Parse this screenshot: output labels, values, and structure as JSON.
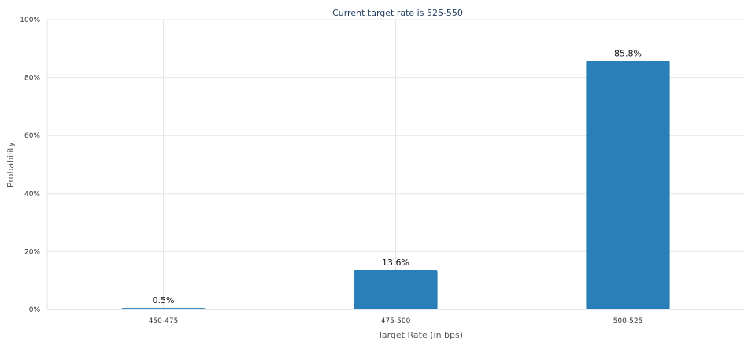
{
  "chart_data": {
    "type": "bar",
    "title": "Current target rate is 525-550",
    "xlabel": "Target Rate (in bps)",
    "ylabel": "Probability",
    "categories": [
      "450-475",
      "475-500",
      "500-525"
    ],
    "values": [
      0.5,
      13.6,
      85.8
    ],
    "value_labels": [
      "0.5%",
      "13.6%",
      "85.8%"
    ],
    "y_ticks": [
      0,
      20,
      40,
      60,
      80,
      100
    ],
    "y_tick_labels": [
      "0%",
      "20%",
      "40%",
      "60%",
      "80%",
      "100%"
    ],
    "ylim": [
      0,
      100
    ],
    "grid": true,
    "bar_color": "#2a7fba",
    "grid_color": "#e6e6e6"
  }
}
